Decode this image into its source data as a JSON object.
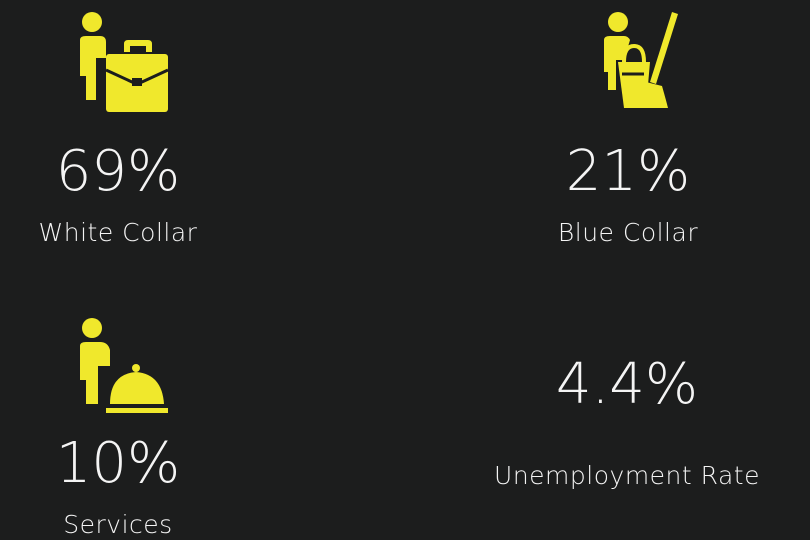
{
  "stats": [
    {
      "value": "69%",
      "label": "White Collar"
    },
    {
      "value": "21%",
      "label": "Blue Collar"
    },
    {
      "value": "10%",
      "label": "Services"
    },
    {
      "value": "4.4%",
      "label": "Unemployment Rate"
    }
  ]
}
